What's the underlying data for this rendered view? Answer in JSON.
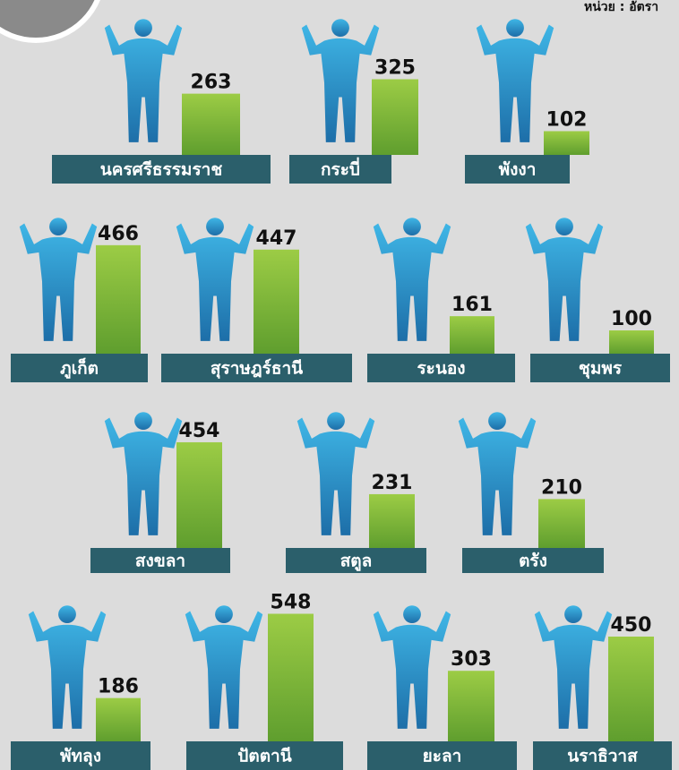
{
  "chart_data": {
    "type": "bar",
    "unit_note": "หน่วย : อัตรา",
    "categories": [
      "นครศรีธรรมราช",
      "กระบี่",
      "พังงา",
      "ภูเก็ต",
      "สุราษฎร์ธานี",
      "ระนอง",
      "ชุมพร",
      "สงขลา",
      "สตูล",
      "ตรัง",
      "พัทลุง",
      "ปัตตานี",
      "ยะลา",
      "นราธิวาส"
    ],
    "values": [
      263,
      325,
      102,
      466,
      447,
      161,
      100,
      454,
      231,
      210,
      186,
      548,
      303,
      450
    ],
    "color": "#8cc63f"
  }
}
